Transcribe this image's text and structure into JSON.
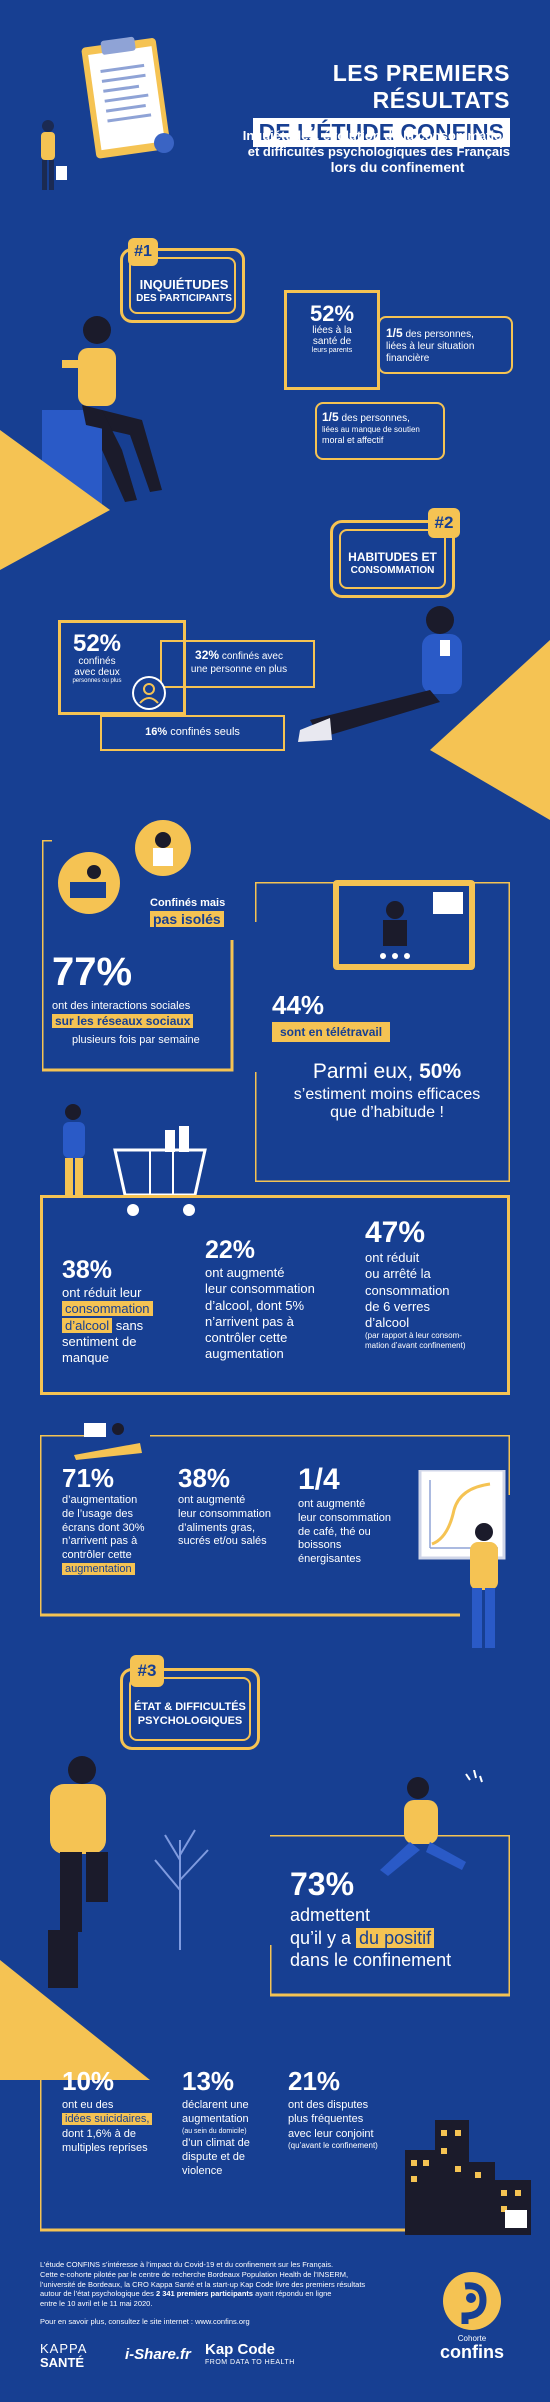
{
  "header": {
    "title_line1": "LES PREMIERS RÉSULTATS",
    "title_line2": "DE L’ÉTUDE CONFINS",
    "subtitle_line1": "Inquiétudes, évolution de la consommation",
    "subtitle_line2": "et difficultés psychologiques des Français",
    "subtitle_line3": "lors du confinement"
  },
  "section1": {
    "number": "#1",
    "title_line1": "INQUIÉTUDES",
    "title_line2": "DES PARTICIPANTS",
    "stat1_value": "52%",
    "stat1_line1": "liées à la",
    "stat1_line2": "santé de",
    "stat1_line3": "leurs parents",
    "stat2_value": "1/5",
    "stat2_text": "des personnes,",
    "stat2_line2": "liées à leur situation",
    "stat2_line3": "financière",
    "stat3_value": "1/5",
    "stat3_text": "des personnes,",
    "stat3_line2": "liées au manque de soutien",
    "stat3_line3": "moral et affectif"
  },
  "section2": {
    "number": "#2",
    "title_line1": "HABITUDES ET",
    "title_line2": "CONSOMMATION",
    "stat1_value": "52%",
    "stat1_line1": "confinés",
    "stat1_line2": "avec deux",
    "stat1_line3": "personnes ou plus",
    "stat2_value": "32%",
    "stat2_text": "confinés avec",
    "stat2_line2": "une personne en plus",
    "stat3_value": "16%",
    "stat3_text": "confinés seuls"
  },
  "social": {
    "tag_line1": "Confinés mais",
    "tag_line2": "pas isolés",
    "value": "77%",
    "line1": "ont des interactions sociales",
    "line2": "sur les réseaux sociaux",
    "line3": "plusieurs fois par semaine"
  },
  "telework": {
    "value": "44%",
    "label": "sont en télétravail",
    "line1_prefix": "Parmi eux,",
    "line1_value": "50%",
    "line2": "s’estiment moins efficaces",
    "line3": "que d’habitude !"
  },
  "alcohol": {
    "s1_value": "38%",
    "s1_line1": "ont réduit leur",
    "s1_hl1": "consommation",
    "s1_hl2": "d’alcool",
    "s1_line3": "sans",
    "s1_line4": "sentiment de",
    "s1_line5": "manque",
    "s2_value": "22%",
    "s2_line1": "ont augmenté",
    "s2_line2": "leur consommation",
    "s2_line3": "d’alcool, dont 5%",
    "s2_line4": "n’arrivent pas à",
    "s2_line5": "contrôler cette",
    "s2_line6": "augmentation",
    "s3_value": "47%",
    "s3_line1": "ont réduit",
    "s3_line2": "ou arrêté la",
    "s3_line3": "consommation",
    "s3_line4": "de 6 verres",
    "s3_line5": "d’alcool",
    "s3_note1": "(par rapport à leur consom-",
    "s3_note2": "mation d’avant confinement)"
  },
  "screens": {
    "s1_value": "71%",
    "s1_line1": "d’augmentation",
    "s1_line2": "de l’usage des",
    "s1_line3": "écrans dont 30%",
    "s1_line4": "n’arrivent pas à",
    "s1_line5": "contrôler cette",
    "s1_hl": "augmentation",
    "s2_value": "38%",
    "s2_line1": "ont augmenté",
    "s2_line2": "leur consommation",
    "s2_line3": "d’aliments gras,",
    "s2_line4": "sucrés et/ou salés",
    "s3_value": "1/4",
    "s3_line1": "ont augmenté",
    "s3_line2": "leur consommation",
    "s3_line3": "de café, thé ou",
    "s3_line4": "boissons",
    "s3_line5": "énergisantes"
  },
  "section3": {
    "number": "#3",
    "title_line1": "ÉTAT & DIFFICULTÉS",
    "title_line2": "PSYCHOLOGIQUES",
    "positive_value": "73%",
    "positive_line1": "admettent",
    "positive_line2_prefix": "qu’il y a",
    "positive_hl": "du positif",
    "positive_line3": "dans le confinement",
    "s1_value": "10%",
    "s1_line1": "ont eu des",
    "s1_hl": "idées suicidaires,",
    "s1_line2": "dont 1,6% à de",
    "s1_line3": "multiples reprises",
    "s2_value": "13%",
    "s2_line1": "déclarent une",
    "s2_line2": "augmentation",
    "s2_note": "(au sein du domicile)",
    "s2_line3": "d’un climat de",
    "s2_line4": "dispute et de",
    "s2_line5": "violence",
    "s3_value": "21%",
    "s3_line1": "ont des disputes",
    "s3_line2": "plus fréquentes",
    "s3_line3": "avec leur conjoint",
    "s3_note": "(qu’avant le confinement)"
  },
  "footer": {
    "p1": "L’étude CONFINS s’intéresse à l’impact du Covid-19 et du confinement sur les Français.",
    "p2": "Cette e-cohorte pilotée par le centre de recherche Bordeaux Population Health de l’INSERM,",
    "p3": "l’université de Bordeaux, la CRO Kappa Santé et la start-up Kap Code livre des premiers résultats",
    "p4_prefix": "autour de l’état psychologique des",
    "p4_bold": "2 341 premiers participants",
    "p4_suffix": "ayant répondu en ligne",
    "p5": "entre le 10 avril et le 11 mai 2020.",
    "more": "Pour en savoir plus, consultez le site internet : www.confins.org",
    "logo_kappa1": "KAPPA",
    "logo_kappa2": "SANTÉ",
    "logo_ishare": "i-Share.fr",
    "logo_kapcode": "Kap Code",
    "logo_kapcode_sub": "FROM DATA TO HEALTH",
    "logo_confins_small": "Cohorte",
    "logo_confins": "confins"
  }
}
